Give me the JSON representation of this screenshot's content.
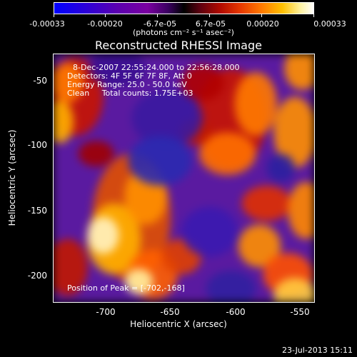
{
  "colorbar": {
    "ticks": [
      "-0.00033",
      "-0.00020",
      "-6.7e-05",
      "6.7e-05",
      "0.00020",
      "0.00033"
    ],
    "units": "(photons cm⁻² s⁻¹ asec⁻²)"
  },
  "title": "Reconstructed RHESSI Image",
  "info": {
    "time_range": "8-Dec-2007 22:55:24.000 to 22:56:28.000",
    "detectors": "Detectors: 4F 5F 6F 7F 8F, Att 0",
    "energy": "Energy Range: 25.0 - 50.0 keV",
    "clean": "Clean     Total counts: 1.75E+03",
    "peak": "Position of Peak = [-702,-168]"
  },
  "axes": {
    "xlabel": "Heliocentric X (arcsec)",
    "ylabel": "Heliocentric Y (arcsec)",
    "xticks": [
      "-700",
      "-650",
      "-600",
      "-550"
    ],
    "yticks": [
      "-50",
      "-100",
      "-150",
      "-200"
    ]
  },
  "timestamp": "23-Jul-2013 15:11"
}
